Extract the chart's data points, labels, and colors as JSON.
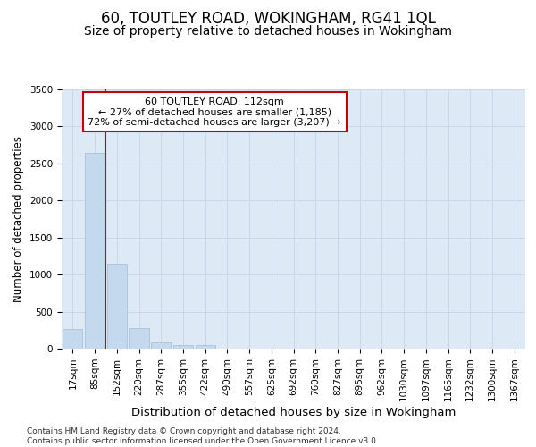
{
  "title1": "60, TOUTLEY ROAD, WOKINGHAM, RG41 1QL",
  "title2": "Size of property relative to detached houses in Wokingham",
  "xlabel": "Distribution of detached houses by size in Wokingham",
  "ylabel": "Number of detached properties",
  "categories": [
    "17sqm",
    "85sqm",
    "152sqm",
    "220sqm",
    "287sqm",
    "355sqm",
    "422sqm",
    "490sqm",
    "557sqm",
    "625sqm",
    "692sqm",
    "760sqm",
    "827sqm",
    "895sqm",
    "962sqm",
    "1030sqm",
    "1097sqm",
    "1165sqm",
    "1232sqm",
    "1300sqm",
    "1367sqm"
  ],
  "values": [
    270,
    2640,
    1150,
    280,
    80,
    50,
    45,
    0,
    0,
    0,
    0,
    0,
    0,
    0,
    0,
    0,
    0,
    0,
    0,
    0,
    0
  ],
  "bar_color": "#c5d9ee",
  "bar_edge_color": "#a0bdd8",
  "vline_x": 1.5,
  "vline_color": "#cc0000",
  "annotation_box_text": "60 TOUTLEY ROAD: 112sqm\n← 27% of detached houses are smaller (1,185)\n72% of semi-detached houses are larger (3,207) →",
  "annotation_box_color": "#cc0000",
  "annotation_box_bg": "#ffffff",
  "ylim": [
    0,
    3500
  ],
  "yticks": [
    0,
    500,
    1000,
    1500,
    2000,
    2500,
    3000,
    3500
  ],
  "grid_color": "#c8d8ea",
  "bg_color": "#dde9f5",
  "footnote": "Contains HM Land Registry data © Crown copyright and database right 2024.\nContains public sector information licensed under the Open Government Licence v3.0.",
  "title1_fontsize": 12,
  "title2_fontsize": 10,
  "xlabel_fontsize": 9.5,
  "ylabel_fontsize": 8.5,
  "tick_fontsize": 7.5,
  "footnote_fontsize": 6.5
}
